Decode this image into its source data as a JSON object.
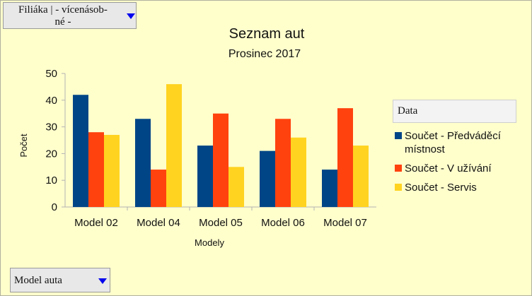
{
  "filters": {
    "top": {
      "label_line1": "Filiáka | - vícenásob-",
      "label_line2": "né -"
    },
    "bottom": {
      "label": "Model auta"
    }
  },
  "legend_title": "Data",
  "colors": {
    "background": "#ffffcc",
    "series": [
      "#004586",
      "#ff420e",
      "#ffd320"
    ]
  },
  "chart_data": {
    "type": "bar",
    "title": "Seznam aut",
    "subtitle": "Prosinec 2017",
    "xlabel": "Modely",
    "ylabel": "Počet",
    "ylim": [
      0,
      50
    ],
    "yticks": [
      0,
      10,
      20,
      30,
      40,
      50
    ],
    "grid": false,
    "legend_position": "right",
    "categories": [
      "Model 02",
      "Model 04",
      "Model 05",
      "Model 06",
      "Model 07"
    ],
    "series": [
      {
        "name": "Součet - Předváděcí místnost",
        "name_lines": [
          "Součet - Předváděcí",
          "místnost"
        ],
        "values": [
          42,
          33,
          23,
          21,
          14
        ]
      },
      {
        "name": "Součet - V užívání",
        "name_lines": [
          "Součet - V užívání"
        ],
        "values": [
          28,
          14,
          35,
          33,
          37
        ]
      },
      {
        "name": "Součet - Servis",
        "name_lines": [
          "Součet - Servis"
        ],
        "values": [
          27,
          46,
          15,
          26,
          23
        ]
      }
    ]
  }
}
